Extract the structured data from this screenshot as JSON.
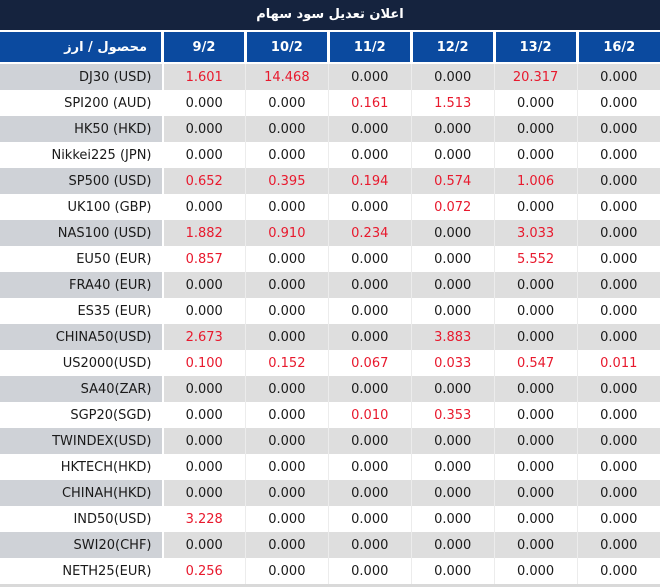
{
  "title": "اعلان تعديل سود سهام",
  "colors": {
    "title_bar_bg": "#15233e",
    "header_bg": "#0b4a9f",
    "header_text": "#ffffff",
    "row_gray_bg": "#dedede",
    "label_gray_bg": "#cfd2d7",
    "value_dark": "#1a1a1a",
    "value_red": "#e8192d"
  },
  "chart_data": {
    "type": "table",
    "title": "اعلان تعديل سود سهام",
    "label_column_header": "محصول / ارز",
    "date_column_headers": [
      "9/2",
      "10/2",
      "11/2",
      "12/2",
      "13/2",
      "16/2"
    ],
    "value_style_rule": "non-zero values rendered red, zero values dark",
    "rows": [
      {
        "label": "DJ30 (USD)",
        "values": [
          "1.601",
          "14.468",
          "0.000",
          "0.000",
          "20.317",
          "0.000"
        ]
      },
      {
        "label": "SPI200 (AUD)",
        "values": [
          "0.000",
          "0.000",
          "0.161",
          "1.513",
          "0.000",
          "0.000"
        ]
      },
      {
        "label": "HK50 (HKD)",
        "values": [
          "0.000",
          "0.000",
          "0.000",
          "0.000",
          "0.000",
          "0.000"
        ]
      },
      {
        "label": "Nikkei225 (JPN)",
        "values": [
          "0.000",
          "0.000",
          "0.000",
          "0.000",
          "0.000",
          "0.000"
        ]
      },
      {
        "label": "SP500 (USD)",
        "values": [
          "0.652",
          "0.395",
          "0.194",
          "0.574",
          "1.006",
          "0.000"
        ]
      },
      {
        "label": "UK100 (GBP)",
        "values": [
          "0.000",
          "0.000",
          "0.000",
          "0.072",
          "0.000",
          "0.000"
        ]
      },
      {
        "label": "NAS100 (USD)",
        "values": [
          "1.882",
          "0.910",
          "0.234",
          "0.000",
          "3.033",
          "0.000"
        ]
      },
      {
        "label": "EU50 (EUR)",
        "values": [
          "0.857",
          "0.000",
          "0.000",
          "0.000",
          "5.552",
          "0.000"
        ]
      },
      {
        "label": "FRA40 (EUR)",
        "values": [
          "0.000",
          "0.000",
          "0.000",
          "0.000",
          "0.000",
          "0.000"
        ]
      },
      {
        "label": "ES35 (EUR)",
        "values": [
          "0.000",
          "0.000",
          "0.000",
          "0.000",
          "0.000",
          "0.000"
        ]
      },
      {
        "label": "CHINA50(USD)",
        "values": [
          "2.673",
          "0.000",
          "0.000",
          "3.883",
          "0.000",
          "0.000"
        ]
      },
      {
        "label": "US2000(USD)",
        "values": [
          "0.100",
          "0.152",
          "0.067",
          "0.033",
          "0.547",
          "0.011"
        ]
      },
      {
        "label": "SA40(ZAR)",
        "values": [
          "0.000",
          "0.000",
          "0.000",
          "0.000",
          "0.000",
          "0.000"
        ]
      },
      {
        "label": "SGP20(SGD)",
        "values": [
          "0.000",
          "0.000",
          "0.010",
          "0.353",
          "0.000",
          "0.000"
        ]
      },
      {
        "label": "TWINDEX(USD)",
        "values": [
          "0.000",
          "0.000",
          "0.000",
          "0.000",
          "0.000",
          "0.000"
        ]
      },
      {
        "label": "HKTECH(HKD)",
        "values": [
          "0.000",
          "0.000",
          "0.000",
          "0.000",
          "0.000",
          "0.000"
        ]
      },
      {
        "label": "CHINAH(HKD)",
        "values": [
          "0.000",
          "0.000",
          "0.000",
          "0.000",
          "0.000",
          "0.000"
        ]
      },
      {
        "label": "IND50(USD)",
        "values": [
          "3.228",
          "0.000",
          "0.000",
          "0.000",
          "0.000",
          "0.000"
        ]
      },
      {
        "label": "SWI20(CHF)",
        "values": [
          "0.000",
          "0.000",
          "0.000",
          "0.000",
          "0.000",
          "0.000"
        ]
      },
      {
        "label": "NETH25(EUR)",
        "values": [
          "0.256",
          "0.000",
          "0.000",
          "0.000",
          "0.000",
          "0.000"
        ]
      }
    ]
  }
}
